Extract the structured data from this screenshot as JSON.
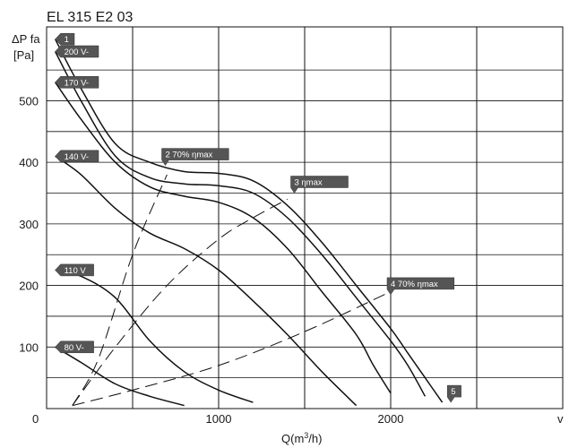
{
  "chart_data": {
    "type": "line",
    "title": "EL 315 E2 03",
    "ylabel_line1": "ΔP fa",
    "ylabel_line2": "[Pa]",
    "xlabel_prefix": "Q(m",
    "xlabel_sup": "3",
    "xlabel_suffix": "/h)",
    "right_corner_label": "v",
    "origin_label": "0",
    "xlim": [
      0,
      3000
    ],
    "ylim": [
      0,
      620
    ],
    "x_ticks": [
      {
        "value": 1000,
        "label": "1000"
      },
      {
        "value": 2000,
        "label": "2000"
      }
    ],
    "y_ticks": [
      {
        "value": 100,
        "label": "100"
      },
      {
        "value": 200,
        "label": "200"
      },
      {
        "value": 300,
        "label": "300"
      },
      {
        "value": 400,
        "label": "400"
      },
      {
        "value": 500,
        "label": "500"
      }
    ],
    "x_grid": [
      500,
      1000,
      1500,
      2000,
      2500
    ],
    "y_grid": [
      50,
      100,
      150,
      200,
      250,
      300,
      350,
      400,
      450,
      500,
      550
    ],
    "grid": true,
    "series": [
      {
        "name": "1",
        "style": "solid",
        "points": [
          [
            50,
            600
          ],
          [
            200,
            520
          ],
          [
            400,
            430
          ],
          [
            600,
            400
          ],
          [
            800,
            385
          ],
          [
            1000,
            382
          ],
          [
            1200,
            370
          ],
          [
            1400,
            330
          ],
          [
            1600,
            270
          ],
          [
            1800,
            200
          ],
          [
            2000,
            130
          ],
          [
            2100,
            90
          ],
          [
            2200,
            50
          ],
          [
            2300,
            10
          ]
        ]
      },
      {
        "name": "200 V-",
        "style": "solid",
        "points": [
          [
            50,
            580
          ],
          [
            200,
            500
          ],
          [
            400,
            410
          ],
          [
            600,
            375
          ],
          [
            800,
            365
          ],
          [
            1000,
            362
          ],
          [
            1200,
            350
          ],
          [
            1400,
            310
          ],
          [
            1600,
            250
          ],
          [
            1800,
            180
          ],
          [
            2000,
            110
          ],
          [
            2100,
            70
          ],
          [
            2200,
            20
          ]
        ]
      },
      {
        "name": "170 V-",
        "style": "solid",
        "points": [
          [
            50,
            530
          ],
          [
            200,
            470
          ],
          [
            400,
            400
          ],
          [
            600,
            360
          ],
          [
            800,
            345
          ],
          [
            1000,
            335
          ],
          [
            1200,
            310
          ],
          [
            1400,
            260
          ],
          [
            1600,
            190
          ],
          [
            1800,
            120
          ],
          [
            1900,
            70
          ],
          [
            2000,
            25
          ]
        ]
      },
      {
        "name": "140 V-",
        "style": "solid",
        "points": [
          [
            50,
            410
          ],
          [
            200,
            380
          ],
          [
            400,
            325
          ],
          [
            600,
            285
          ],
          [
            800,
            260
          ],
          [
            1000,
            225
          ],
          [
            1200,
            175
          ],
          [
            1400,
            120
          ],
          [
            1600,
            60
          ],
          [
            1800,
            5
          ]
        ]
      },
      {
        "name": "110 V",
        "style": "solid",
        "points": [
          [
            50,
            225
          ],
          [
            200,
            215
          ],
          [
            400,
            180
          ],
          [
            600,
            110
          ],
          [
            800,
            60
          ],
          [
            1000,
            30
          ],
          [
            1200,
            10
          ]
        ]
      },
      {
        "name": "80 V-",
        "style": "solid",
        "points": [
          [
            50,
            100
          ],
          [
            200,
            75
          ],
          [
            400,
            40
          ],
          [
            600,
            20
          ],
          [
            800,
            5
          ]
        ]
      },
      {
        "name": "",
        "style": "dashed",
        "points": [
          [
            150,
            5
          ],
          [
            300,
            80
          ],
          [
            500,
            250
          ],
          [
            700,
            380
          ]
        ]
      },
      {
        "name": "",
        "style": "dashed",
        "points": [
          [
            150,
            5
          ],
          [
            400,
            100
          ],
          [
            700,
            200
          ],
          [
            1000,
            275
          ],
          [
            1200,
            310
          ],
          [
            1400,
            340
          ]
        ]
      },
      {
        "name": "",
        "style": "dashed",
        "points": [
          [
            150,
            5
          ],
          [
            500,
            30
          ],
          [
            1000,
            70
          ],
          [
            1500,
            125
          ],
          [
            2000,
            190
          ]
        ]
      }
    ],
    "tags": [
      {
        "label": "1",
        "x": 50,
        "y": 600,
        "dir": "left"
      },
      {
        "label": "200 V-",
        "x": 50,
        "y": 580,
        "dir": "left"
      },
      {
        "label": "170 V-",
        "x": 50,
        "y": 530,
        "dir": "left"
      },
      {
        "label": "140 V-",
        "x": 50,
        "y": 410,
        "dir": "left"
      },
      {
        "label": "110 V",
        "x": 50,
        "y": 225,
        "dir": "left"
      },
      {
        "label": "80 V-",
        "x": 50,
        "y": 100,
        "dir": "left"
      },
      {
        "label": "2   70% ηmax",
        "x": 690,
        "y": 395,
        "dir": "down"
      },
      {
        "label": "3     ηmax",
        "x": 1440,
        "y": 350,
        "dir": "down"
      },
      {
        "label": "4   70% ηmax",
        "x": 2000,
        "y": 185,
        "dir": "down"
      },
      {
        "label": "5",
        "x": 2350,
        "y": 10,
        "dir": "down"
      }
    ]
  }
}
